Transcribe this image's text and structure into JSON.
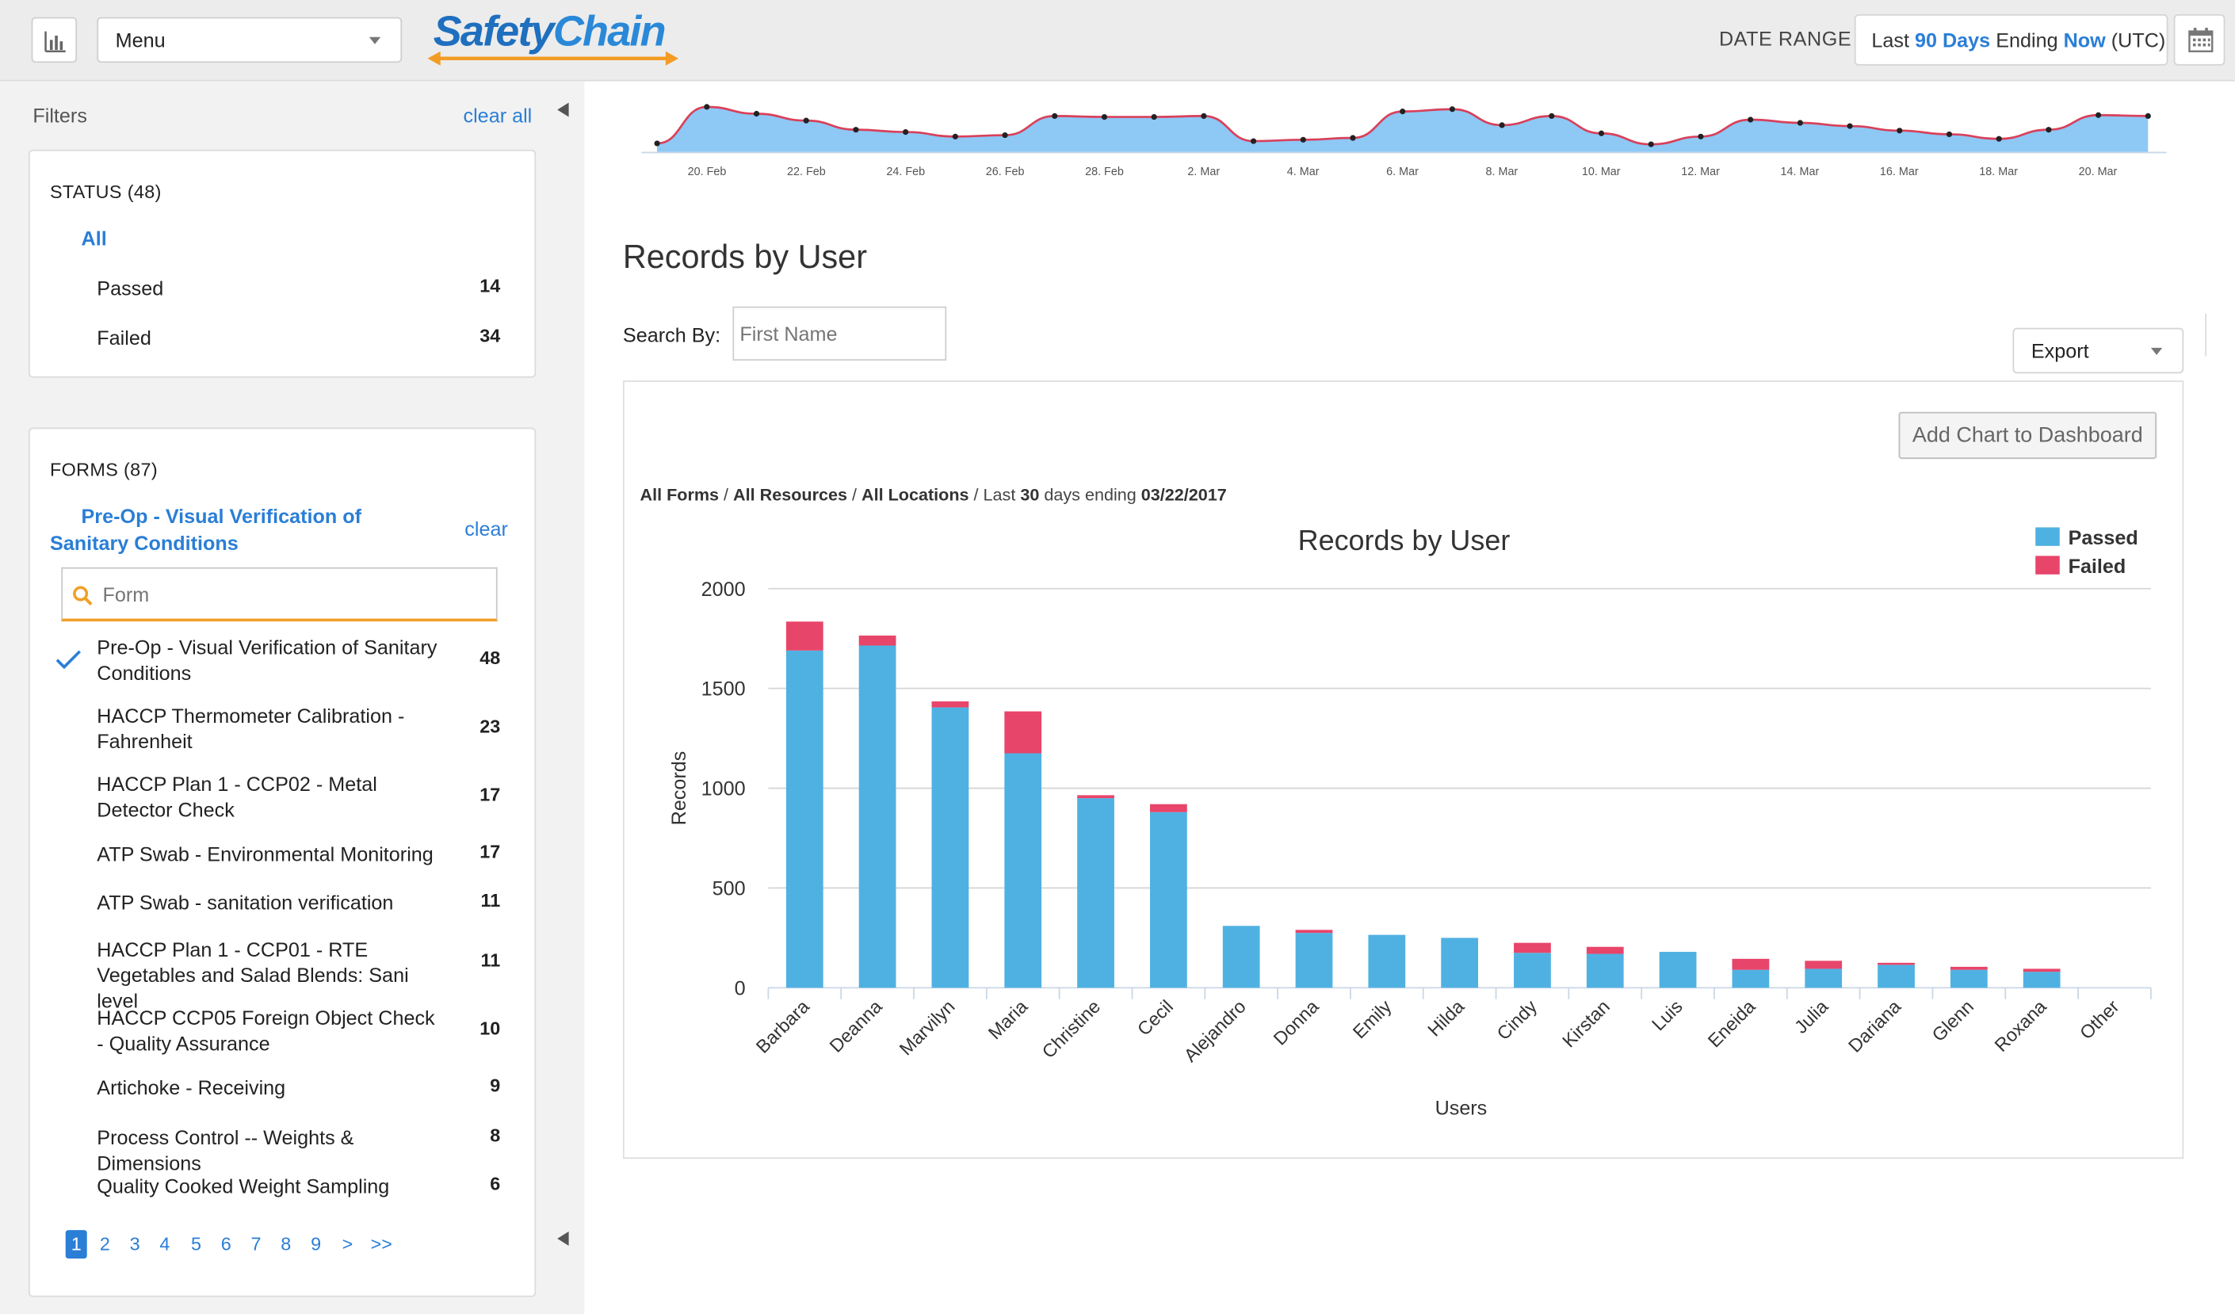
{
  "header": {
    "menu_label": "Menu",
    "logo_text_a": "Safety",
    "logo_text_b": "Chain",
    "date_range_label": "DATE RANGE",
    "date_range": {
      "pre": "Last ",
      "days": "90 Days",
      "mid": " Ending ",
      "now": "Now",
      "post": " (UTC)"
    }
  },
  "sidebar": {
    "filters_label": "Filters",
    "clear_all": "clear all",
    "status": {
      "title": "STATUS (48)",
      "all": "All",
      "items": [
        {
          "label": "Passed",
          "count": "14"
        },
        {
          "label": "Failed",
          "count": "34"
        }
      ]
    },
    "forms": {
      "title": "FORMS (87)",
      "selected": "Pre-Op - Visual Verification of Sanitary Conditions",
      "clear": "clear",
      "search_placeholder": "Form",
      "items": [
        {
          "label": "Pre-Op - Visual Verification of Sanitary Conditions",
          "count": "48",
          "checked": true
        },
        {
          "label": "HACCP Thermometer Calibration - Fahrenheit",
          "count": "23"
        },
        {
          "label": "HACCP Plan 1 - CCP02 - Metal Detector Check",
          "count": "17"
        },
        {
          "label": "ATP Swab - Environmental Monitoring",
          "count": "17"
        },
        {
          "label": "ATP Swab - sanitation verification",
          "count": "11"
        },
        {
          "label": "HACCP Plan 1 - CCP01 - RTE Vegetables and Salad Blends: Sani level",
          "count": "11"
        },
        {
          "label": "HACCP CCP05 Foreign Object Check - Quality Assurance",
          "count": "10"
        },
        {
          "label": "Artichoke - Receiving",
          "count": "9"
        },
        {
          "label": "Process Control -- Weights & Dimensions",
          "count": "8"
        },
        {
          "label": "Quality Cooked Weight Sampling",
          "count": "6"
        }
      ]
    },
    "pagination": [
      "1",
      "2",
      "3",
      "4",
      "5",
      "6",
      "7",
      "8",
      "9",
      ">",
      ">>"
    ]
  },
  "main": {
    "title": "Records by User",
    "search_by_label": "Search By:",
    "search_placeholder": "First Name",
    "export_label": "Export",
    "add_chart_label": "Add Chart to Dashboard",
    "breadcrumb": {
      "a": "All Forms",
      "b": "All Resources",
      "c": "All Locations",
      "d": "Last ",
      "e": "30",
      "f": " days ending ",
      "g": "03/22/2017"
    }
  },
  "colors": {
    "passed": "#4fb1e2",
    "failed": "#e8456a",
    "area": "#8ec8f5",
    "area_line": "#d9405a",
    "link": "#2a7ed6"
  },
  "chart_data": [
    {
      "type": "area",
      "x_ticks": [
        "20. Feb",
        "22. Feb",
        "24. Feb",
        "26. Feb",
        "28. Feb",
        "2. Mar",
        "4. Mar",
        "6. Mar",
        "8. Mar",
        "10. Mar",
        "12. Mar",
        "14. Mar",
        "16. Mar",
        "18. Mar",
        "20. Mar"
      ],
      "values": [
        0.2,
        1.0,
        0.85,
        0.7,
        0.5,
        0.45,
        0.35,
        0.38,
        0.8,
        0.78,
        0.78,
        0.8,
        0.25,
        0.28,
        0.32,
        0.9,
        0.95,
        0.6,
        0.8,
        0.42,
        0.18,
        0.35,
        0.72,
        0.65,
        0.58,
        0.48,
        0.4,
        0.3,
        0.5,
        0.82,
        0.8
      ]
    },
    {
      "type": "bar",
      "title": "Records by User",
      "xlabel": "Users",
      "ylabel": "Records",
      "ylim": [
        0,
        2000
      ],
      "yticks": [
        "0",
        "500",
        "1000",
        "1500",
        "2000"
      ],
      "legend_position": "top-right",
      "categories": [
        "Barbara",
        "Deanna",
        "Marvilyn",
        "Maria",
        "Christine",
        "Cecil",
        "Alejandro",
        "Donna",
        "Emily",
        "Hilda",
        "Cindy",
        "Kirstan",
        "Luis",
        "Eneida",
        "Julia",
        "Dariana",
        "Glenn",
        "Roxana",
        "Other"
      ],
      "series": [
        {
          "name": "Passed",
          "values": [
            1690,
            1715,
            1405,
            1175,
            950,
            880,
            310,
            275,
            265,
            250,
            175,
            170,
            180,
            90,
            95,
            115,
            90,
            80,
            0
          ]
        },
        {
          "name": "Failed",
          "values": [
            145,
            50,
            30,
            210,
            15,
            40,
            0,
            15,
            0,
            0,
            50,
            35,
            0,
            55,
            40,
            10,
            15,
            15,
            0
          ]
        }
      ]
    }
  ]
}
